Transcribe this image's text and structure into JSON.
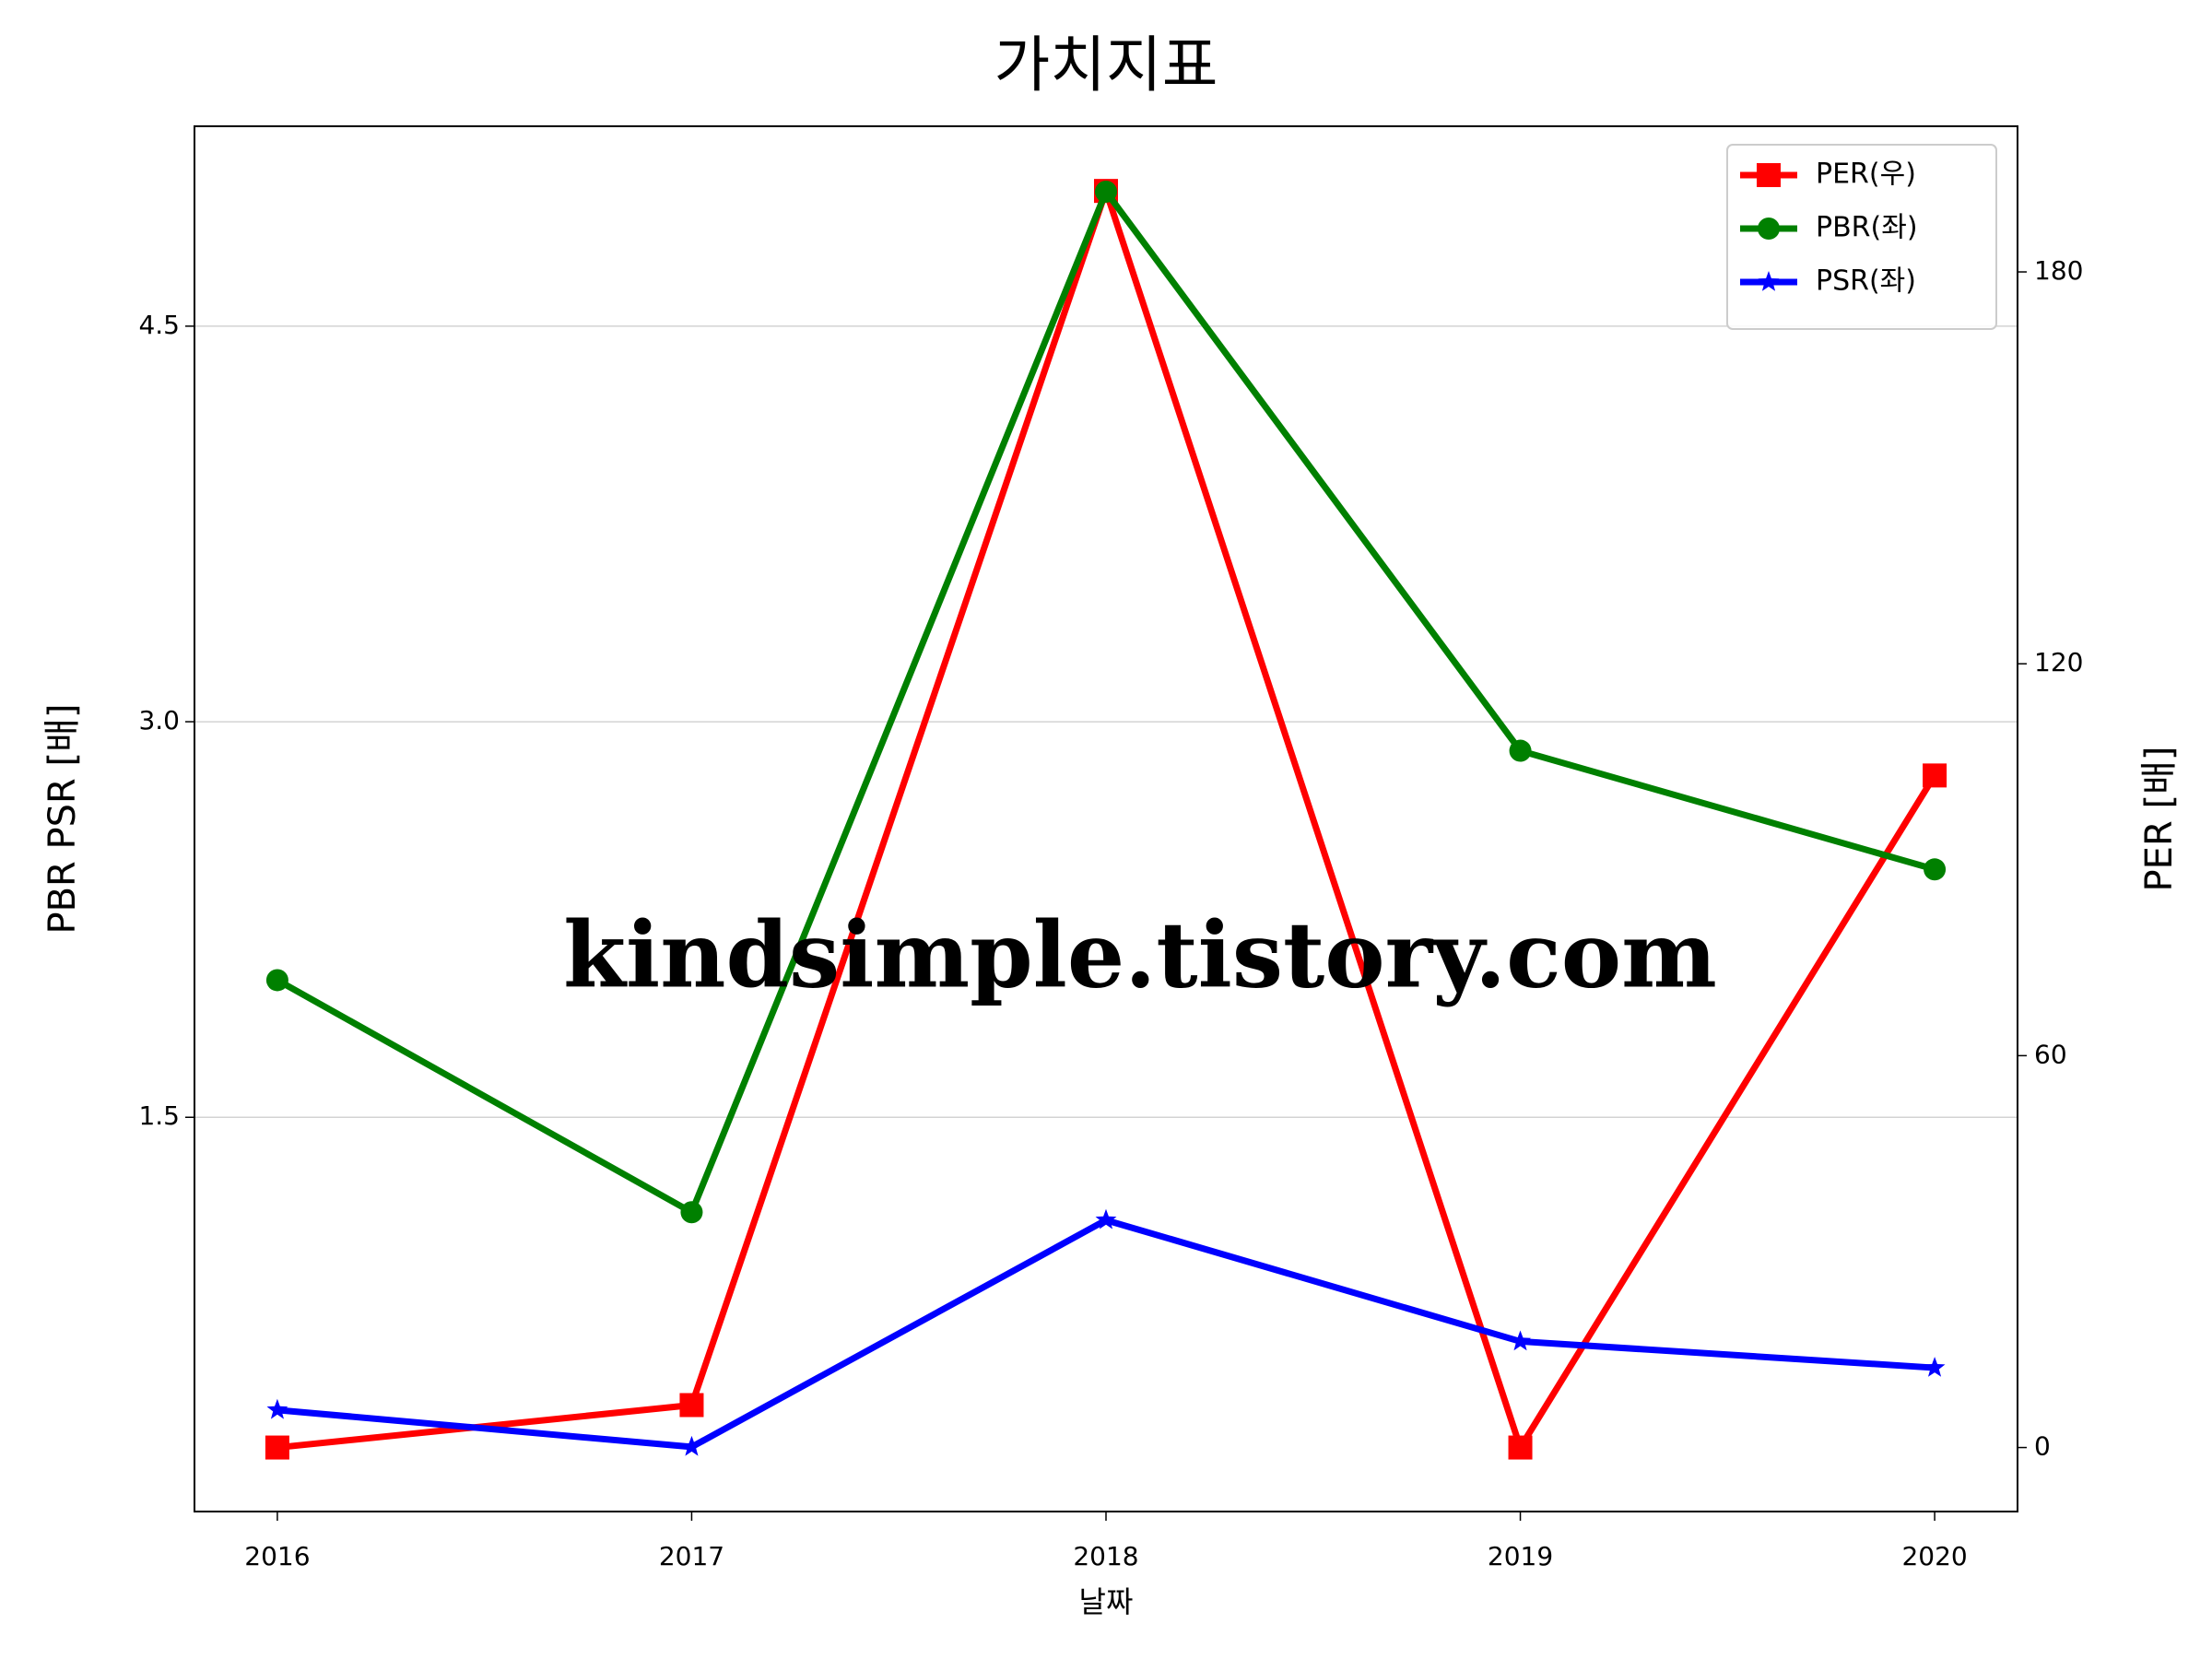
{
  "chart_data": {
    "type": "line",
    "title": "가치지표",
    "xlabel": "날짜",
    "ylabel": "PBR PSR [배]",
    "ylabel_color": "#008000",
    "y2label": "PER [배]",
    "y2label_color": "#ff0000",
    "watermark": "kindsimple.tistory.com",
    "x": [
      2016,
      2017,
      2018,
      2019,
      2020
    ],
    "xlim": [
      2015.8,
      2020.2
    ],
    "xticks": [
      2016,
      2017,
      2018,
      2019,
      2020
    ],
    "ylim": [
      0.005,
      5.258
    ],
    "yticks": [
      {
        "value": 1.5,
        "label": "1.5"
      },
      {
        "value": 3.0,
        "label": "3.0"
      },
      {
        "value": 4.5,
        "label": "4.5"
      }
    ],
    "y2lim": [
      -9.8,
      202.3
    ],
    "y2ticks": [
      0,
      60,
      120,
      180
    ],
    "grid": true,
    "legend": "upper right",
    "series": [
      {
        "name": "PER(우)",
        "color": "#ff0000",
        "marker": "square",
        "axis": "y2",
        "values": [
          0,
          6.5,
          192.4,
          0,
          102.9
        ]
      },
      {
        "name": "PBR(좌)",
        "color": "#008000",
        "marker": "circle",
        "values": [
          2.02,
          1.14,
          5.01,
          2.89,
          2.44
        ]
      },
      {
        "name": "PSR(좌)",
        "color": "#0000ff",
        "marker": "star",
        "values": [
          0.39,
          0.25,
          1.11,
          0.65,
          0.55
        ]
      }
    ]
  }
}
